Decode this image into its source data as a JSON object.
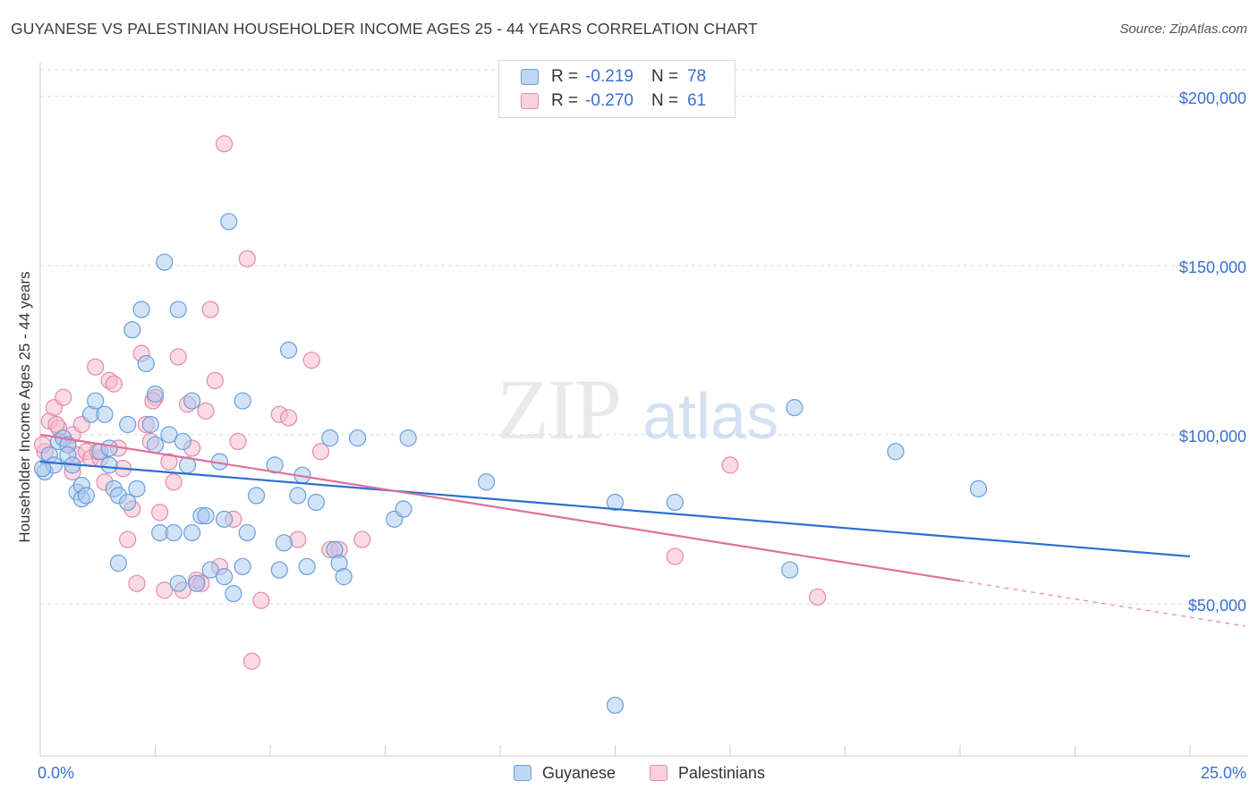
{
  "title": "GUYANESE VS PALESTINIAN HOUSEHOLDER INCOME AGES 25 - 44 YEARS CORRELATION CHART",
  "source": "Source: ZipAtlas.com",
  "watermark": {
    "zip": "ZIP",
    "atlas": "atlas"
  },
  "legend_top": {
    "rows": [
      {
        "r_label": "R =",
        "r_value": "-0.219",
        "n_label": "N =",
        "n_value": "78"
      },
      {
        "r_label": "R =",
        "r_value": "-0.270",
        "n_label": "N =",
        "n_value": "61"
      }
    ]
  },
  "legend_bottom": [
    "Guyanese",
    "Palestinians"
  ],
  "colors": {
    "guyanese_fill": "#a8c8f0",
    "guyanese_stroke": "#6a9fdc",
    "guyanese_line": "#2c6fcf",
    "palestinian_fill": "#f6b8cc",
    "palestinian_stroke": "#e58aa9",
    "palestinian_line": "#e0709b",
    "tick_label": "#3a6fd0",
    "grid": "#dddddd"
  },
  "chart_data": {
    "type": "scatter",
    "title": "GUYANESE VS PALESTINIAN HOUSEHOLDER INCOME AGES 25 - 44 YEARS CORRELATION CHART",
    "xlabel": "",
    "ylabel": "Householder Income Ages 25 - 44 years",
    "xlim": [
      0,
      25
    ],
    "ylim": [
      5000,
      210000
    ],
    "x_tick_labels": [
      {
        "value": 0,
        "label": "0.0%"
      },
      {
        "value": 25,
        "label": "25.0%"
      }
    ],
    "y_ticks": [
      {
        "value": 50000,
        "label": "$50,000"
      },
      {
        "value": 100000,
        "label": "$100,000"
      },
      {
        "value": 150000,
        "label": "$150,000"
      },
      {
        "value": 200000,
        "label": "$200,000"
      }
    ],
    "grid": true,
    "legend_position": "top-center",
    "series": [
      {
        "name": "Guyanese",
        "r": -0.219,
        "n": 78,
        "trend": {
          "x": [
            0,
            25
          ],
          "y": [
            92000,
            64000
          ],
          "dashed_from": null
        },
        "points": [
          [
            0.1,
            89000
          ],
          [
            0.2,
            94000
          ],
          [
            0.3,
            91000
          ],
          [
            0.4,
            98000
          ],
          [
            0.5,
            99000
          ],
          [
            0.6,
            97000
          ],
          [
            0.6,
            94000
          ],
          [
            0.7,
            91000
          ],
          [
            0.8,
            83000
          ],
          [
            0.9,
            85000
          ],
          [
            0.9,
            81000
          ],
          [
            1.0,
            82000
          ],
          [
            1.1,
            106000
          ],
          [
            1.2,
            110000
          ],
          [
            1.3,
            95000
          ],
          [
            1.4,
            106000
          ],
          [
            1.5,
            96000
          ],
          [
            1.5,
            91000
          ],
          [
            1.6,
            84000
          ],
          [
            1.7,
            82000
          ],
          [
            1.7,
            62000
          ],
          [
            1.9,
            80000
          ],
          [
            1.9,
            103000
          ],
          [
            2.0,
            131000
          ],
          [
            2.1,
            84000
          ],
          [
            2.2,
            137000
          ],
          [
            2.3,
            121000
          ],
          [
            2.4,
            103000
          ],
          [
            2.5,
            97000
          ],
          [
            2.5,
            112000
          ],
          [
            2.6,
            71000
          ],
          [
            2.7,
            151000
          ],
          [
            2.8,
            100000
          ],
          [
            2.9,
            71000
          ],
          [
            3.0,
            56000
          ],
          [
            3.0,
            137000
          ],
          [
            3.1,
            98000
          ],
          [
            3.2,
            91000
          ],
          [
            3.3,
            110000
          ],
          [
            3.3,
            71000
          ],
          [
            3.4,
            56000
          ],
          [
            3.5,
            76000
          ],
          [
            3.6,
            76000
          ],
          [
            3.7,
            60000
          ],
          [
            3.9,
            92000
          ],
          [
            4.0,
            58000
          ],
          [
            4.0,
            75000
          ],
          [
            4.1,
            163000
          ],
          [
            4.2,
            53000
          ],
          [
            4.4,
            61000
          ],
          [
            4.4,
            110000
          ],
          [
            4.5,
            71000
          ],
          [
            4.7,
            82000
          ],
          [
            5.1,
            91000
          ],
          [
            5.2,
            60000
          ],
          [
            5.3,
            68000
          ],
          [
            5.4,
            125000
          ],
          [
            5.6,
            82000
          ],
          [
            5.7,
            88000
          ],
          [
            5.8,
            61000
          ],
          [
            6.0,
            80000
          ],
          [
            6.3,
            99000
          ],
          [
            6.4,
            66000
          ],
          [
            6.5,
            62000
          ],
          [
            6.6,
            58000
          ],
          [
            6.9,
            99000
          ],
          [
            7.7,
            75000
          ],
          [
            7.9,
            78000
          ],
          [
            8.0,
            99000
          ],
          [
            9.7,
            86000
          ],
          [
            12.5,
            20000
          ],
          [
            12.5,
            80000
          ],
          [
            13.8,
            80000
          ],
          [
            16.3,
            60000
          ],
          [
            16.4,
            108000
          ],
          [
            18.6,
            95000
          ],
          [
            20.4,
            84000
          ],
          [
            0.05,
            90000
          ]
        ]
      },
      {
        "name": "Palestinians",
        "r": -0.27,
        "n": 61,
        "trend": {
          "x": [
            0,
            25
          ],
          "y": [
            100000,
            46000
          ],
          "dashed_from": 20.0
        },
        "points": [
          [
            0.1,
            95000
          ],
          [
            0.2,
            104000
          ],
          [
            0.3,
            108000
          ],
          [
            0.4,
            102000
          ],
          [
            0.5,
            111000
          ],
          [
            0.6,
            97000
          ],
          [
            0.7,
            100000
          ],
          [
            0.7,
            89000
          ],
          [
            0.8,
            94000
          ],
          [
            0.9,
            103000
          ],
          [
            1.0,
            95000
          ],
          [
            1.1,
            93000
          ],
          [
            1.2,
            120000
          ],
          [
            1.3,
            93000
          ],
          [
            1.4,
            86000
          ],
          [
            1.5,
            116000
          ],
          [
            1.6,
            115000
          ],
          [
            1.7,
            96000
          ],
          [
            1.8,
            90000
          ],
          [
            1.9,
            69000
          ],
          [
            2.0,
            78000
          ],
          [
            2.1,
            56000
          ],
          [
            2.2,
            124000
          ],
          [
            2.3,
            103000
          ],
          [
            2.4,
            98000
          ],
          [
            2.5,
            111000
          ],
          [
            2.6,
            77000
          ],
          [
            2.7,
            54000
          ],
          [
            2.8,
            92000
          ],
          [
            2.9,
            86000
          ],
          [
            3.0,
            123000
          ],
          [
            3.1,
            54000
          ],
          [
            3.2,
            109000
          ],
          [
            3.3,
            96000
          ],
          [
            3.4,
            57000
          ],
          [
            3.5,
            56000
          ],
          [
            3.6,
            107000
          ],
          [
            3.7,
            137000
          ],
          [
            3.8,
            116000
          ],
          [
            3.9,
            61000
          ],
          [
            4.0,
            186000
          ],
          [
            4.2,
            75000
          ],
          [
            4.3,
            98000
          ],
          [
            4.5,
            152000
          ],
          [
            4.6,
            33000
          ],
          [
            4.8,
            51000
          ],
          [
            5.2,
            106000
          ],
          [
            5.4,
            105000
          ],
          [
            5.6,
            69000
          ],
          [
            5.9,
            122000
          ],
          [
            6.1,
            95000
          ],
          [
            6.3,
            66000
          ],
          [
            6.5,
            66000
          ],
          [
            7.0,
            69000
          ],
          [
            0.05,
            97000
          ],
          [
            0.35,
            103000
          ],
          [
            1.25,
            95000
          ],
          [
            2.45,
            110000
          ],
          [
            13.8,
            64000
          ],
          [
            15.0,
            91000
          ],
          [
            16.9,
            52000
          ]
        ]
      }
    ]
  }
}
